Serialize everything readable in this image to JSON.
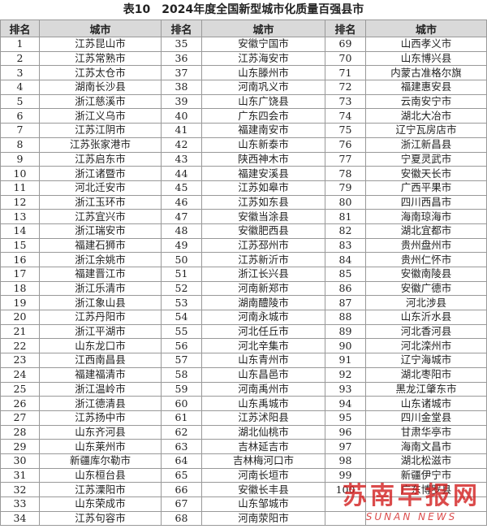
{
  "title": "表10　2024年度全国新型城市化质量百强县市",
  "table": {
    "header": [
      "排名",
      "城市",
      "排名",
      "城市",
      "排名",
      "城市"
    ],
    "rows": [
      [
        1,
        "江苏昆山市",
        35,
        "安徽宁国市",
        69,
        "山西孝义市"
      ],
      [
        2,
        "江苏常熟市",
        36,
        "江苏海安市",
        70,
        "山东博兴县"
      ],
      [
        3,
        "江苏太仓市",
        37,
        "山东滕州市",
        71,
        "内蒙古准格尔旗"
      ],
      [
        4,
        "湖南长沙县",
        38,
        "河南巩义市",
        72,
        "福建惠安县"
      ],
      [
        5,
        "浙江慈溪市",
        39,
        "山东广饶县",
        73,
        "云南安宁市"
      ],
      [
        6,
        "浙江义乌市",
        40,
        "广东四会市",
        74,
        "湖北大冶市"
      ],
      [
        7,
        "江苏江阴市",
        41,
        "福建南安市",
        75,
        "辽宁瓦房店市"
      ],
      [
        8,
        "江苏张家港市",
        42,
        "山东新泰市",
        76,
        "浙江新昌县"
      ],
      [
        9,
        "江苏启东市",
        43,
        "陕西神木市",
        77,
        "宁夏灵武市"
      ],
      [
        10,
        "浙江诸暨市",
        44,
        "福建安溪县",
        78,
        "安徽天长市"
      ],
      [
        11,
        "河北迁安市",
        45,
        "江苏如皋市",
        79,
        "广西平果市"
      ],
      [
        12,
        "浙江玉环市",
        46,
        "江苏如东县",
        80,
        "四川西昌市"
      ],
      [
        13,
        "江苏宜兴市",
        47,
        "安徽当涂县",
        81,
        "海南琼海市"
      ],
      [
        14,
        "浙江瑞安市",
        48,
        "安徽肥西县",
        82,
        "湖北宜都市"
      ],
      [
        15,
        "福建石狮市",
        49,
        "江苏邳州市",
        83,
        "贵州盘州市"
      ],
      [
        16,
        "浙江余姚市",
        50,
        "江苏新沂市",
        84,
        "贵州仁怀市"
      ],
      [
        17,
        "福建晋江市",
        51,
        "浙江长兴县",
        85,
        "安徽南陵县"
      ],
      [
        18,
        "浙江乐清市",
        52,
        "河南新郑市",
        86,
        "安徽广德市"
      ],
      [
        19,
        "浙江象山县",
        53,
        "湖南醴陵市",
        87,
        "河北涉县"
      ],
      [
        20,
        "江苏丹阳市",
        54,
        "河南永城市",
        88,
        "山东沂水县"
      ],
      [
        21,
        "浙江平湖市",
        55,
        "河北任丘市",
        89,
        "河北香河县"
      ],
      [
        22,
        "山东龙口市",
        56,
        "河北辛集市",
        90,
        "河北滦州市"
      ],
      [
        23,
        "江西南昌县",
        57,
        "山东青州市",
        91,
        "辽宁海城市"
      ],
      [
        24,
        "福建福清市",
        58,
        "山东昌邑市",
        92,
        "湖北枣阳市"
      ],
      [
        25,
        "浙江温岭市",
        59,
        "河南禹州市",
        93,
        "黑龙江肇东市"
      ],
      [
        26,
        "浙江德清县",
        60,
        "山东禹城市",
        94,
        "山东诸城市"
      ],
      [
        27,
        "江苏扬中市",
        61,
        "江苏沭阳县",
        95,
        "四川金堂县"
      ],
      [
        28,
        "山东齐河县",
        62,
        "湖北仙桃市",
        96,
        "甘肃华亭市"
      ],
      [
        29,
        "山东莱州市",
        63,
        "吉林延吉市",
        97,
        "海南文昌市"
      ],
      [
        30,
        "新疆库尔勒市",
        64,
        "吉林梅河口市",
        98,
        "湖北松滋市"
      ],
      [
        31,
        "山东桓台县",
        65,
        "河南长垣市",
        99,
        "新疆伊宁市"
      ],
      [
        32,
        "江苏溧阳市",
        66,
        "安徽长丰县",
        100,
        "广东博罗县"
      ],
      [
        33,
        "山东荣成市",
        67,
        "山东邹城市"
      ],
      [
        34,
        "江苏句容市",
        68,
        "河南荥阳市"
      ]
    ]
  },
  "watermark": {
    "text": "苏南早报网",
    "subtitle": "SUNAN NEWS"
  }
}
